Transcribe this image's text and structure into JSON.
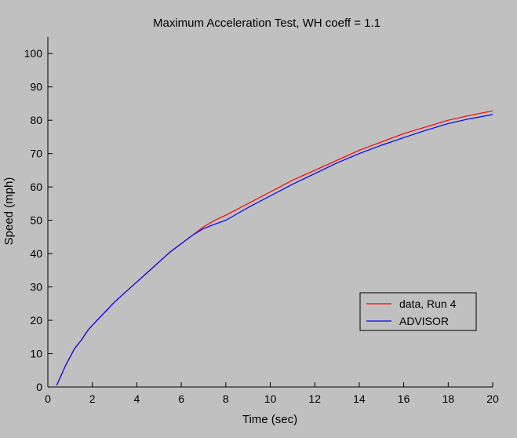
{
  "chart_data": {
    "type": "line",
    "title": "Maximum Acceleration Test, WH coeff = 1.1",
    "xlabel": "Time (sec)",
    "ylabel": "Speed (mph)",
    "xlim": [
      0,
      20
    ],
    "ylim": [
      0,
      105
    ],
    "xticks": [
      0,
      2,
      4,
      6,
      8,
      10,
      12,
      14,
      16,
      18,
      20
    ],
    "yticks": [
      0,
      10,
      20,
      30,
      40,
      50,
      60,
      70,
      80,
      90,
      100
    ],
    "grid": false,
    "legend_position": "bottom-right",
    "series": [
      {
        "name": "data, Run 4",
        "color": "#ff0000",
        "x": [
          0.4,
          0.6,
          0.8,
          1.0,
          1.2,
          1.5,
          1.8,
          2.0,
          2.5,
          3.0,
          3.5,
          4.0,
          4.5,
          5.0,
          5.5,
          6.0,
          6.5,
          7.0,
          7.5,
          8.0,
          9.0,
          10.0,
          11.0,
          12.0,
          13.0,
          14.0,
          15.0,
          16.0,
          17.0,
          18.0,
          19.0,
          20.0
        ],
        "y": [
          0.5,
          3.5,
          6.5,
          9.0,
          11.5,
          14.0,
          17.0,
          18.5,
          22.0,
          25.5,
          28.5,
          31.5,
          34.5,
          37.5,
          40.5,
          43.0,
          45.5,
          48.0,
          50.0,
          51.5,
          55.0,
          58.5,
          62.0,
          65.0,
          68.0,
          71.0,
          73.5,
          76.0,
          78.0,
          80.0,
          81.5,
          82.8
        ]
      },
      {
        "name": "ADVISOR",
        "color": "#0000ff",
        "x": [
          0.4,
          0.6,
          0.8,
          1.0,
          1.2,
          1.5,
          1.8,
          2.0,
          2.5,
          3.0,
          3.5,
          4.0,
          4.5,
          5.0,
          5.5,
          6.0,
          6.5,
          7.0,
          7.5,
          8.0,
          9.0,
          10.0,
          11.0,
          12.0,
          13.0,
          14.0,
          15.0,
          16.0,
          17.0,
          18.0,
          19.0,
          20.0
        ],
        "y": [
          0.5,
          3.5,
          6.5,
          9.0,
          11.5,
          14.0,
          17.0,
          18.5,
          22.0,
          25.5,
          28.5,
          31.5,
          34.5,
          37.5,
          40.5,
          43.0,
          45.5,
          47.5,
          48.8,
          50.0,
          53.8,
          57.3,
          60.8,
          64.0,
          67.2,
          70.0,
          72.5,
          74.8,
          77.0,
          79.0,
          80.5,
          81.7
        ]
      }
    ]
  }
}
